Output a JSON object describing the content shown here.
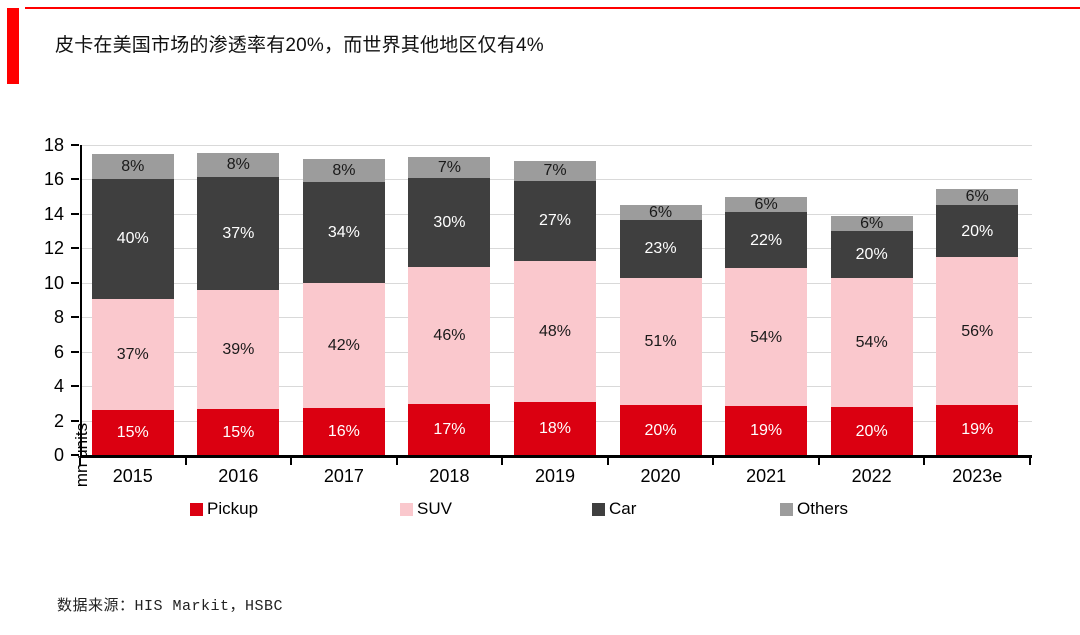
{
  "header": {
    "title": "皮卡在美国市场的渗透率有20%，而世界其他地区仅有4%",
    "accent_color": "#ff0000"
  },
  "chart_data": {
    "type": "bar",
    "stacked": true,
    "title": "皮卡在美国市场的渗透率有20%，而世界其他地区仅有4%",
    "xlabel": "",
    "ylabel": "mn units",
    "ylim": [
      0,
      18
    ],
    "yticks": [
      0,
      2,
      4,
      6,
      8,
      10,
      12,
      14,
      16,
      18
    ],
    "grid": true,
    "legend_position": "bottom",
    "categories": [
      "2015",
      "2016",
      "2017",
      "2018",
      "2019",
      "2020",
      "2021",
      "2022",
      "2023e"
    ],
    "totals_mn_units": [
      17.45,
      17.55,
      17.2,
      17.3,
      17.1,
      14.5,
      15.0,
      13.85,
      15.45
    ],
    "series": [
      {
        "name": "Pickup",
        "color": "#db0011",
        "label_color": "#ffffff",
        "percent": [
          15,
          15,
          16,
          17,
          18,
          20,
          19,
          20,
          19
        ]
      },
      {
        "name": "SUV",
        "color": "#fac8cd",
        "label_color": "#1a1a1a",
        "percent": [
          37,
          39,
          42,
          46,
          48,
          51,
          54,
          54,
          56
        ]
      },
      {
        "name": "Car",
        "color": "#3f3f3f",
        "label_color": "#ffffff",
        "percent": [
          40,
          37,
          34,
          30,
          27,
          23,
          22,
          20,
          20
        ]
      },
      {
        "name": "Others",
        "color": "#9c9c9c",
        "label_color": "#1a1a1a",
        "percent": [
          8,
          8,
          8,
          7,
          7,
          6,
          6,
          6,
          6
        ]
      }
    ]
  },
  "footer": {
    "source": "数据来源：HIS Markit，HSBC"
  }
}
